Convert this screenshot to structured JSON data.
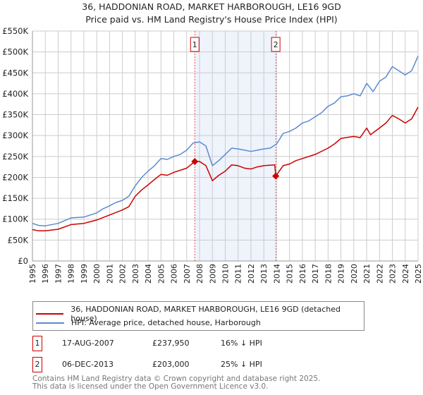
{
  "title_line1": "36, HADDONIAN ROAD, MARKET HARBOROUGH, LE16 9GD",
  "title_line2": "Price paid vs. HM Land Registry's House Price Index (HPI)",
  "chart_data": {
    "type": "line",
    "title": "36, HADDONIAN ROAD, MARKET HARBOROUGH, LE16 9GD - Price paid vs. HM Land Registry's House Price Index (HPI)",
    "xlim": [
      1995,
      2025
    ],
    "ylim": [
      0,
      550000
    ],
    "y_ticks": [
      0,
      50000,
      100000,
      150000,
      200000,
      250000,
      300000,
      350000,
      400000,
      450000,
      500000,
      550000
    ],
    "y_tick_labels": [
      "£0",
      "£50K",
      "£100K",
      "£150K",
      "£200K",
      "£250K",
      "£300K",
      "£350K",
      "£400K",
      "£450K",
      "£500K",
      "£550K"
    ],
    "x_ticks": [
      1995,
      1996,
      1997,
      1998,
      1999,
      2000,
      2001,
      2002,
      2003,
      2004,
      2005,
      2006,
      2007,
      2008,
      2009,
      2010,
      2011,
      2012,
      2013,
      2014,
      2015,
      2016,
      2017,
      2018,
      2019,
      2020,
      2021,
      2022,
      2023,
      2024,
      2025
    ],
    "x_tick_labels": [
      "1995",
      "1996",
      "1997",
      "1998",
      "1999",
      "2000",
      "2001",
      "2002",
      "2003",
      "2004",
      "2005",
      "2006",
      "2007",
      "2008",
      "2009",
      "2010",
      "2011",
      "2012",
      "2013",
      "2014",
      "2015",
      "2016",
      "2017",
      "2018",
      "2019",
      "2020",
      "2021",
      "2022",
      "2023",
      "2024",
      "2025"
    ],
    "grid": true,
    "shaded_region": [
      2007.63,
      2013.93
    ],
    "series": [
      {
        "name": "36, HADDONIAN ROAD, MARKET HARBOROUGH, LE16 9GD (detached house)",
        "color": "#cc0000",
        "x": [
          1995,
          1995.5,
          1996,
          1997,
          1998,
          1999,
          2000,
          2001,
          2002,
          2002.5,
          2003,
          2003.5,
          2004,
          2004.5,
          2005,
          2005.5,
          2006,
          2007,
          2007.63,
          2008,
          2008.5,
          2009,
          2009.5,
          2010,
          2010.5,
          2011,
          2011.5,
          2012,
          2012.5,
          2013,
          2013.85,
          2013.93,
          2014.2,
          2014.5,
          2015,
          2015.5,
          2016,
          2017,
          2018,
          2018.5,
          2019,
          2020,
          2020.5,
          2021,
          2021.3,
          2022,
          2022.5,
          2023,
          2023.5,
          2024,
          2024.5,
          2025
        ],
        "y": [
          75000,
          72000,
          72000,
          76000,
          87000,
          90000,
          98000,
          110000,
          122000,
          130000,
          155000,
          170000,
          182000,
          195000,
          207000,
          205000,
          212000,
          222000,
          237950,
          238000,
          228000,
          192000,
          205000,
          215000,
          230000,
          228000,
          222000,
          220000,
          225000,
          228000,
          230000,
          203000,
          215000,
          228000,
          232000,
          240000,
          245000,
          255000,
          270000,
          280000,
          293000,
          298000,
          295000,
          318000,
          302000,
          318000,
          330000,
          348000,
          340000,
          330000,
          340000,
          368000
        ]
      },
      {
        "name": "HPI: Average price, detached house, Harborough",
        "color": "#5b8bd0",
        "x": [
          1995,
          1995.5,
          1996,
          1997,
          1998,
          1999,
          2000,
          2000.5,
          2001,
          2001.5,
          2002,
          2002.5,
          2003,
          2003.5,
          2004,
          2004.5,
          2005,
          2005.5,
          2006,
          2006.5,
          2007,
          2007.5,
          2008,
          2008.5,
          2009,
          2009.5,
          2010,
          2010.5,
          2011,
          2011.5,
          2012,
          2012.5,
          2013,
          2013.5,
          2014,
          2014.5,
          2015,
          2015.5,
          2016,
          2016.5,
          2017,
          2017.5,
          2018,
          2018.5,
          2019,
          2019.5,
          2020,
          2020.5,
          2021,
          2021.5,
          2022,
          2022.5,
          2023,
          2023.5,
          2024,
          2024.5,
          2025
        ],
        "y": [
          90000,
          85000,
          84000,
          90000,
          103000,
          105000,
          115000,
          125000,
          132000,
          140000,
          145000,
          155000,
          180000,
          200000,
          215000,
          228000,
          245000,
          243000,
          250000,
          255000,
          265000,
          282000,
          285000,
          275000,
          228000,
          240000,
          255000,
          270000,
          268000,
          265000,
          262000,
          265000,
          268000,
          270000,
          280000,
          305000,
          310000,
          318000,
          330000,
          335000,
          345000,
          355000,
          370000,
          378000,
          393000,
          395000,
          400000,
          395000,
          425000,
          405000,
          430000,
          440000,
          465000,
          455000,
          445000,
          455000,
          490000
        ]
      }
    ],
    "annotations": [
      {
        "label": "1",
        "x": 2007.63,
        "y": 237950
      },
      {
        "label": "2",
        "x": 2013.93,
        "y": 203000
      }
    ],
    "legend_position": "bottom"
  },
  "legend": {
    "property": "36, HADDONIAN ROAD, MARKET HARBOROUGH, LE16 9GD (detached house)",
    "hpi": "HPI: Average price, detached house, Harborough"
  },
  "transactions": [
    {
      "num": "1",
      "date": "17-AUG-2007",
      "price": "£237,950",
      "hpi": "16% ↓ HPI"
    },
    {
      "num": "2",
      "date": "06-DEC-2013",
      "price": "£203,000",
      "hpi": "25% ↓ HPI"
    }
  ],
  "footer_line1": "Contains HM Land Registry data © Crown copyright and database right 2025.",
  "footer_line2": "This data is licensed under the Open Government Licence v3.0."
}
